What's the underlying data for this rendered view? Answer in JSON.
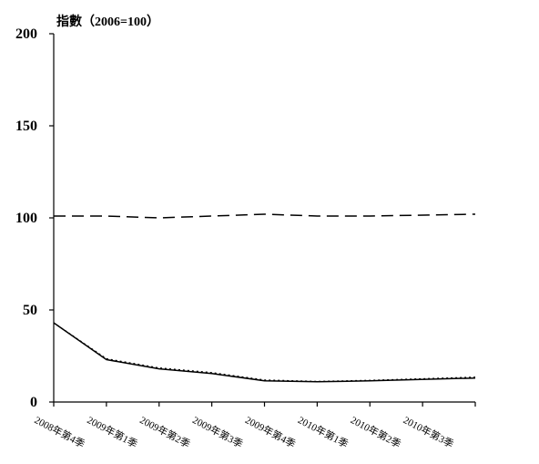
{
  "chart_data": {
    "type": "line",
    "ylabel": "指數（2006=100）",
    "ylim": [
      0,
      200
    ],
    "yticks": [
      0,
      50,
      100,
      150,
      200
    ],
    "categories": [
      "2008年第4季",
      "2009年第1季",
      "2009年第2季",
      "2009年第3季",
      "2009年第4季",
      "2010年第1季",
      "2010年第2季",
      "2010年第3季"
    ],
    "grid": false,
    "legend": "none",
    "series": [
      {
        "style": "dashed",
        "color": "#000000",
        "values": [
          101,
          101,
          100,
          101,
          102,
          101,
          101,
          102
        ]
      },
      {
        "style": "solid",
        "color": "#000000",
        "values": [
          43,
          23,
          18,
          15.5,
          11.5,
          11,
          11.5,
          13
        ]
      },
      {
        "style": "dotted",
        "color": "#000000",
        "values": [
          43,
          23.5,
          18.5,
          16,
          12,
          11.2,
          11.8,
          13.5
        ]
      }
    ]
  }
}
